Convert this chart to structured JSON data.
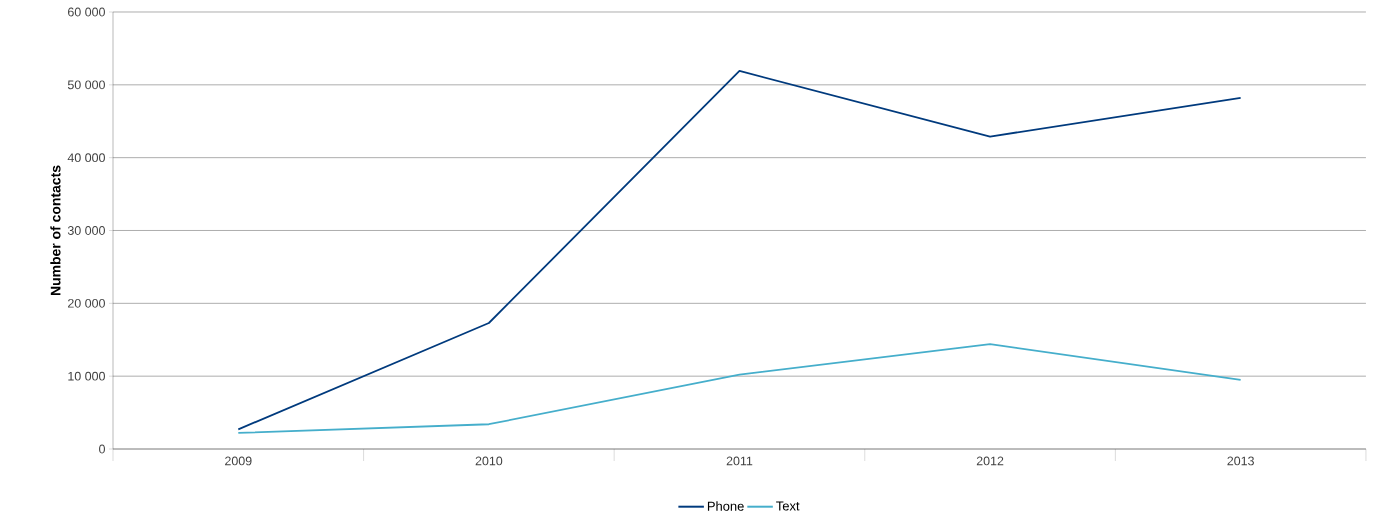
{
  "chart_data": {
    "type": "line",
    "ylabel": "Number of contacts",
    "categories": [
      "2009",
      "2010",
      "2011",
      "2012",
      "2013"
    ],
    "series": [
      {
        "name": "Phone",
        "color": "#003a7d",
        "values": [
          2700,
          17300,
          51900,
          42900,
          48200
        ]
      },
      {
        "name": "Text",
        "color": "#45aecb",
        "values": [
          2200,
          3400,
          10200,
          14400,
          9500
        ]
      }
    ],
    "ylim": [
      0,
      60000
    ],
    "yticks": [
      0,
      {
        "value": 10000,
        "label": "10 000"
      },
      {
        "value": 20000,
        "label": "20 000"
      },
      {
        "value": 30000,
        "label": "30 000"
      },
      {
        "value": 40000,
        "label": "40 000"
      },
      {
        "value": 50000,
        "label": "50 000"
      },
      {
        "value": 60000,
        "label": "60 000"
      }
    ],
    "grid": "y",
    "legend": "bottom",
    "marker": "none",
    "line_style": "solid"
  }
}
